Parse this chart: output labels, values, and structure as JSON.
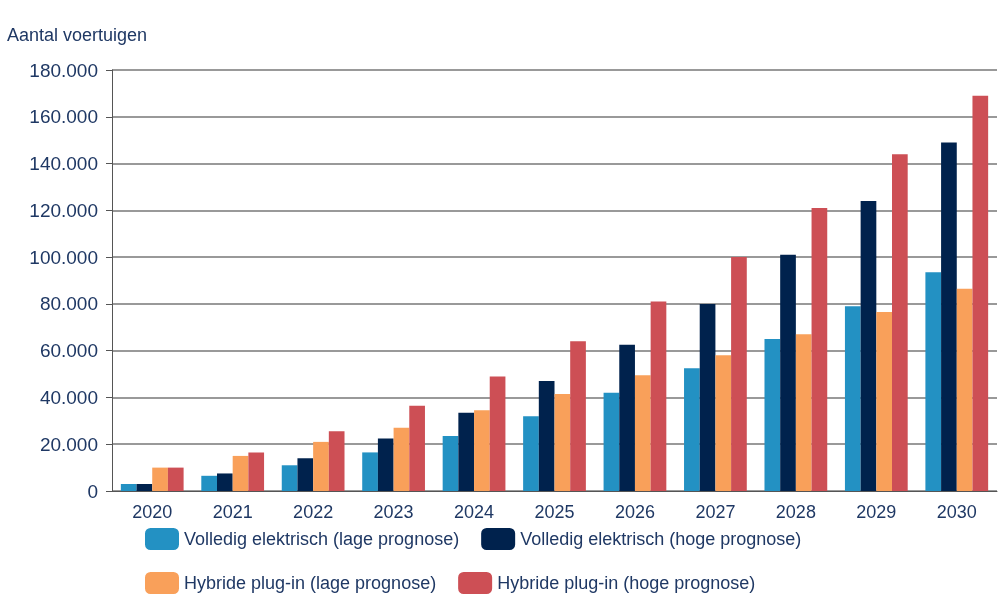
{
  "chart_data": {
    "type": "bar",
    "ylabel": "Aantal voertuigen",
    "categories": [
      "2020",
      "2021",
      "2022",
      "2023",
      "2024",
      "2025",
      "2026",
      "2027",
      "2028",
      "2029",
      "2030"
    ],
    "series": [
      {
        "name": "Volledig elektrisch (lage prognose)",
        "color": "#2391c3",
        "values": [
          3000,
          6500,
          11000,
          16500,
          23500,
          32000,
          42000,
          52500,
          65000,
          79000,
          93500
        ]
      },
      {
        "name": "Volledig elektrisch (hoge prognose)",
        "color": "#00224d",
        "values": [
          3000,
          7500,
          14000,
          22500,
          33500,
          47000,
          62500,
          80000,
          101000,
          124000,
          149000
        ]
      },
      {
        "name": "Hybride plug-in (lage prognose)",
        "color": "#f9a05a",
        "values": [
          10000,
          15000,
          21000,
          27000,
          34500,
          41500,
          49500,
          58000,
          67000,
          76500,
          86500
        ]
      },
      {
        "name": "Hybride plug-in (hoge prognose)",
        "color": "#cd4f55",
        "values": [
          10000,
          16500,
          25500,
          36500,
          49000,
          64000,
          81000,
          100000,
          121000,
          144000,
          169000
        ]
      }
    ],
    "ylim": [
      0,
      180000
    ],
    "yticks": [
      {
        "value": 0,
        "label": "0"
      },
      {
        "value": 20000,
        "label": "20.000"
      },
      {
        "value": 40000,
        "label": "40.000"
      },
      {
        "value": 60000,
        "label": "60.000"
      },
      {
        "value": 80000,
        "label": "80.000"
      },
      {
        "value": 100000,
        "label": "100.000"
      },
      {
        "value": 120000,
        "label": "120.000"
      },
      {
        "value": 140000,
        "label": "140.000"
      },
      {
        "value": 160000,
        "label": "160.000"
      },
      {
        "value": 180000,
        "label": "180.000"
      }
    ],
    "grid": "y",
    "legend": "bottom"
  }
}
